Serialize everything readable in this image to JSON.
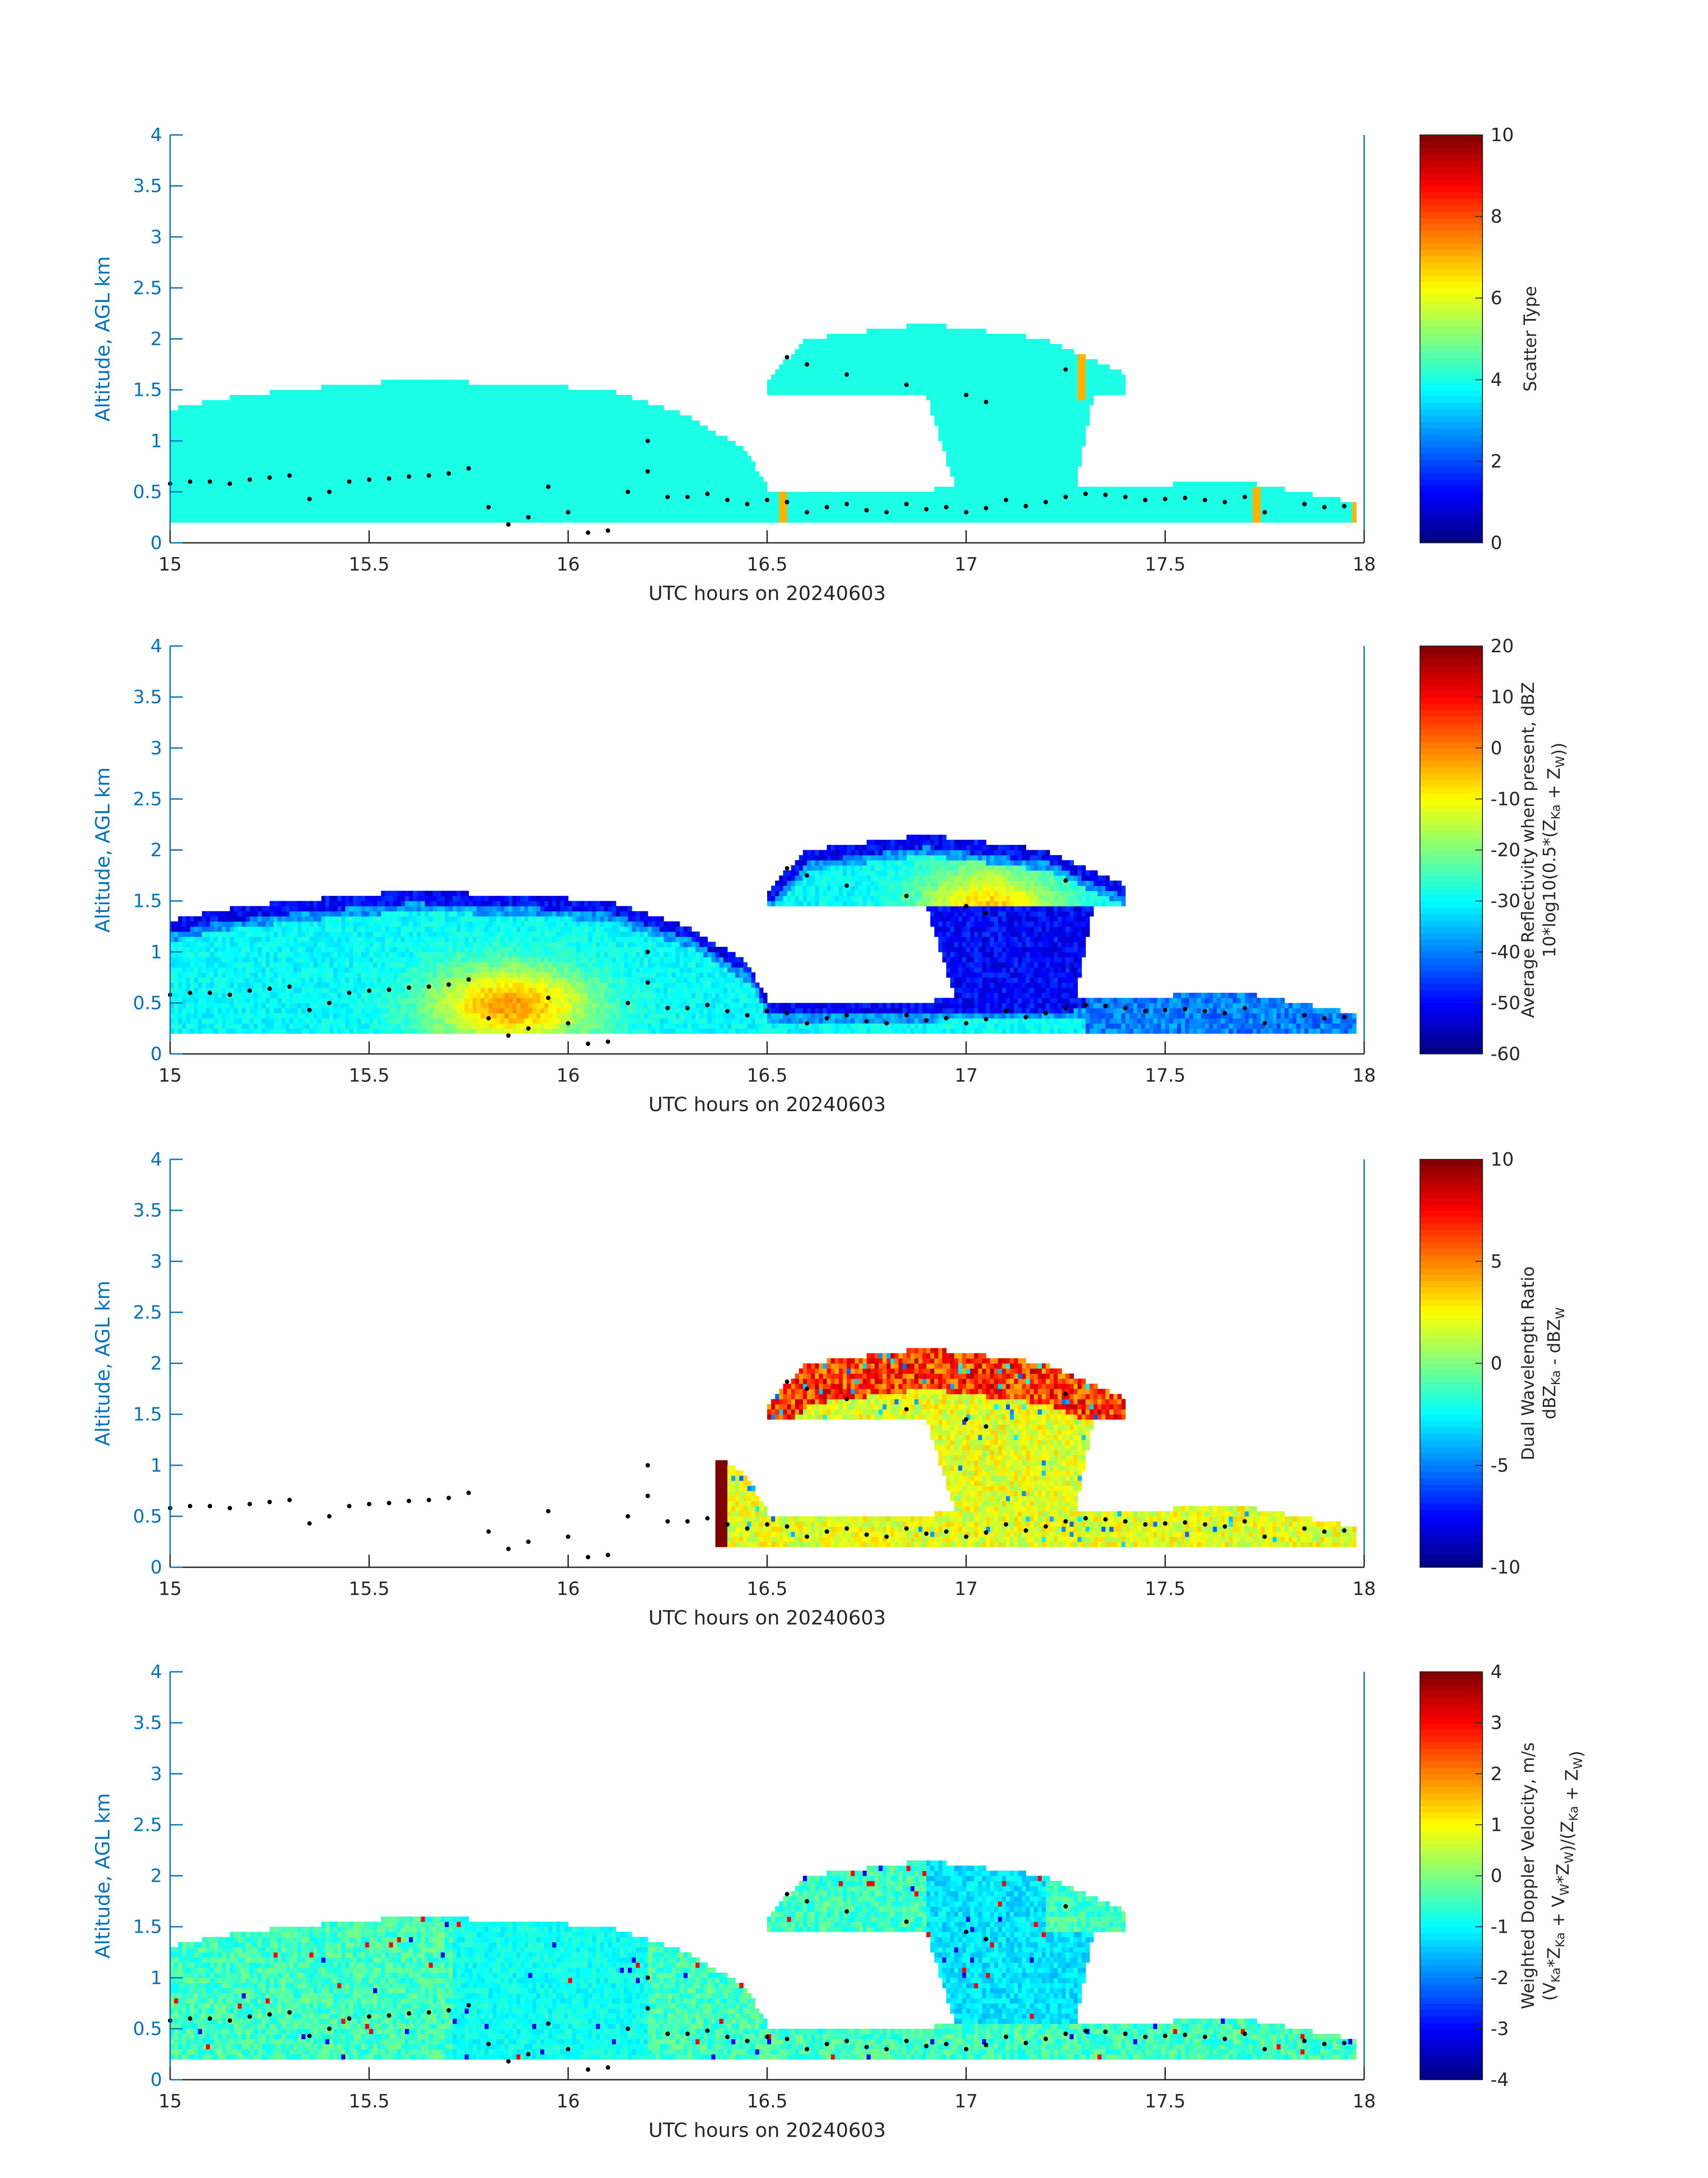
{
  "figure": {
    "colormap": "jet",
    "axis_color": "#0072bd",
    "frame_color": "#262626",
    "cloud_base_marker_color": "#000000"
  },
  "chart_data": [
    {
      "type": "heatmap",
      "title": "",
      "xlabel": "UTC hours on 20240603",
      "ylabel": "Altitude, AGL km",
      "xlim": [
        15,
        18
      ],
      "ylim": [
        0,
        4
      ],
      "xticks": [
        "15",
        "15.5",
        "16",
        "16.5",
        "17",
        "17.5",
        "18"
      ],
      "yticks": [
        "0",
        "0.5",
        "1",
        "1.5",
        "2",
        "2.5",
        "3",
        "3.5",
        "4"
      ],
      "colorbar": {
        "label_lines": [
          "Scatter Type"
        ],
        "clim": [
          0,
          10
        ],
        "ticks": [
          "0",
          "2",
          "4",
          "6",
          "8",
          "10"
        ]
      },
      "typical_value": 4,
      "notes": [
        "value 7 at x 16.53-16.55",
        "value 7 at x 17.28-17.30",
        "value 7 near x 17.73 and 17.98"
      ]
    },
    {
      "type": "heatmap",
      "title": "",
      "xlabel": "UTC hours on 20240603",
      "ylabel": "Altitude, AGL km",
      "xlim": [
        15,
        18
      ],
      "ylim": [
        0,
        4
      ],
      "xticks": [
        "15",
        "15.5",
        "16",
        "16.5",
        "17",
        "17.5",
        "18"
      ],
      "yticks": [
        "0",
        "0.5",
        "1",
        "1.5",
        "2",
        "2.5",
        "3",
        "3.5",
        "4"
      ],
      "colorbar": {
        "label_lines": [
          "Average Reflectivity when present, dBZ",
          "10*log10(0.5*(Z<sub>Ka</sub> + Z<sub>W</sub>))"
        ],
        "clim": [
          -60,
          20
        ],
        "ticks": [
          "-60",
          "-50",
          "-40",
          "-30",
          "-20",
          "-10",
          "0",
          "10",
          "20"
        ]
      },
      "max_value_approx": 5,
      "min_value_approx": -60
    },
    {
      "type": "heatmap",
      "title": "",
      "xlabel": "UTC hours on 20240603",
      "ylabel": "Altitude, AGL km",
      "xlim": [
        15,
        18
      ],
      "ylim": [
        0,
        4
      ],
      "xticks": [
        "15",
        "15.5",
        "16",
        "16.5",
        "17",
        "17.5",
        "18"
      ],
      "yticks": [
        "0",
        "0.5",
        "1",
        "1.5",
        "2",
        "2.5",
        "3",
        "3.5",
        "4"
      ],
      "colorbar": {
        "label_lines": [
          "Dual Wavelength Ratio",
          "dBZ<sub>Ka</sub> - dBZ<sub>W</sub>"
        ],
        "clim": [
          -10,
          10
        ],
        "ticks": [
          "-10",
          "-5",
          "0",
          "5",
          "10"
        ]
      },
      "data_start_x": 16.37,
      "typical_range": [
        0,
        4
      ]
    },
    {
      "type": "heatmap",
      "title": "",
      "xlabel": "UTC hours on 20240603",
      "ylabel": "Altitude, AGL km",
      "xlim": [
        15,
        18
      ],
      "ylim": [
        0,
        4
      ],
      "xticks": [
        "15",
        "15.5",
        "16",
        "16.5",
        "17",
        "17.5",
        "18"
      ],
      "yticks": [
        "0",
        "0.5",
        "1",
        "1.5",
        "2",
        "2.5",
        "3",
        "3.5",
        "4"
      ],
      "colorbar": {
        "label_lines": [
          "Weighted Doppler Velocity, m/s",
          "(V<sub>Ka</sub>*Z<sub>Ka</sub> + V<sub>W</sub>*Z<sub>W</sub>)/(Z<sub>Ka</sub> + Z<sub>W</sub>)"
        ],
        "clim": [
          -4,
          4
        ],
        "ticks": [
          "-4",
          "-3",
          "-2",
          "-1",
          "0",
          "1",
          "2",
          "3",
          "4"
        ]
      },
      "typical_range": [
        -2,
        0.5
      ]
    }
  ],
  "cloud_regions": {
    "first_layer": {
      "x": [
        15,
        16.5
      ],
      "bottom_km": 0.2,
      "top_km_profile": [
        [
          15,
          1.3
        ],
        [
          15.1,
          1.4
        ],
        [
          15.3,
          1.5
        ],
        [
          15.6,
          1.6
        ],
        [
          15.9,
          1.55
        ],
        [
          16.1,
          1.5
        ],
        [
          16.3,
          1.25
        ],
        [
          16.45,
          0.9
        ],
        [
          16.5,
          0.55
        ]
      ]
    },
    "second_layer": {
      "x": [
        16.5,
        17.98
      ],
      "bottom_km": 0.2,
      "top_km_profile": [
        [
          16.5,
          0.5
        ],
        [
          17.35,
          0.55
        ],
        [
          17.7,
          0.6
        ],
        [
          17.98,
          0.4
        ]
      ]
    },
    "upper_cell": {
      "x_profile": [
        [
          16.5,
          1.6
        ],
        [
          16.6,
          2.0
        ],
        [
          16.9,
          2.15
        ],
        [
          17.2,
          2.0
        ],
        [
          17.4,
          1.65
        ]
      ],
      "bottom_km": 1.45
    }
  },
  "cloud_base_points": [
    [
      15.0,
      0.58
    ],
    [
      15.05,
      0.6
    ],
    [
      15.1,
      0.6
    ],
    [
      15.15,
      0.58
    ],
    [
      15.2,
      0.62
    ],
    [
      15.25,
      0.64
    ],
    [
      15.3,
      0.66
    ],
    [
      15.35,
      0.43
    ],
    [
      15.4,
      0.5
    ],
    [
      15.45,
      0.6
    ],
    [
      15.5,
      0.62
    ],
    [
      15.55,
      0.63
    ],
    [
      15.6,
      0.65
    ],
    [
      15.65,
      0.66
    ],
    [
      15.7,
      0.68
    ],
    [
      15.75,
      0.73
    ],
    [
      15.8,
      0.35
    ],
    [
      15.85,
      0.18
    ],
    [
      15.9,
      0.25
    ],
    [
      15.95,
      0.55
    ],
    [
      16.0,
      0.3
    ],
    [
      16.05,
      0.1
    ],
    [
      16.1,
      0.12
    ],
    [
      16.15,
      0.5
    ],
    [
      16.2,
      0.7
    ],
    [
      16.25,
      0.45
    ],
    [
      16.3,
      0.45
    ],
    [
      16.35,
      0.48
    ],
    [
      16.4,
      0.42
    ],
    [
      16.45,
      0.38
    ],
    [
      16.5,
      0.42
    ],
    [
      16.55,
      0.4
    ],
    [
      16.6,
      0.3
    ],
    [
      16.65,
      0.35
    ],
    [
      16.7,
      0.38
    ],
    [
      16.75,
      0.32
    ],
    [
      16.8,
      0.3
    ],
    [
      16.85,
      0.38
    ],
    [
      16.9,
      0.33
    ],
    [
      16.95,
      0.35
    ],
    [
      17.0,
      0.3
    ],
    [
      17.05,
      0.34
    ],
    [
      17.1,
      0.42
    ],
    [
      17.15,
      0.36
    ],
    [
      17.2,
      0.4
    ],
    [
      17.25,
      0.45
    ],
    [
      17.3,
      0.48
    ],
    [
      17.35,
      0.47
    ],
    [
      17.4,
      0.45
    ],
    [
      17.45,
      0.42
    ],
    [
      17.5,
      0.43
    ],
    [
      17.55,
      0.44
    ],
    [
      17.6,
      0.42
    ],
    [
      17.65,
      0.4
    ],
    [
      17.7,
      0.45
    ],
    [
      17.75,
      0.3
    ],
    [
      17.85,
      0.38
    ],
    [
      17.9,
      0.35
    ],
    [
      17.95,
      0.36
    ],
    [
      16.55,
      1.82
    ],
    [
      16.6,
      1.75
    ],
    [
      16.7,
      1.65
    ],
    [
      16.85,
      1.55
    ],
    [
      17.0,
      1.45
    ],
    [
      17.05,
      1.38
    ],
    [
      17.25,
      1.7
    ],
    [
      16.2,
      1.0
    ]
  ]
}
